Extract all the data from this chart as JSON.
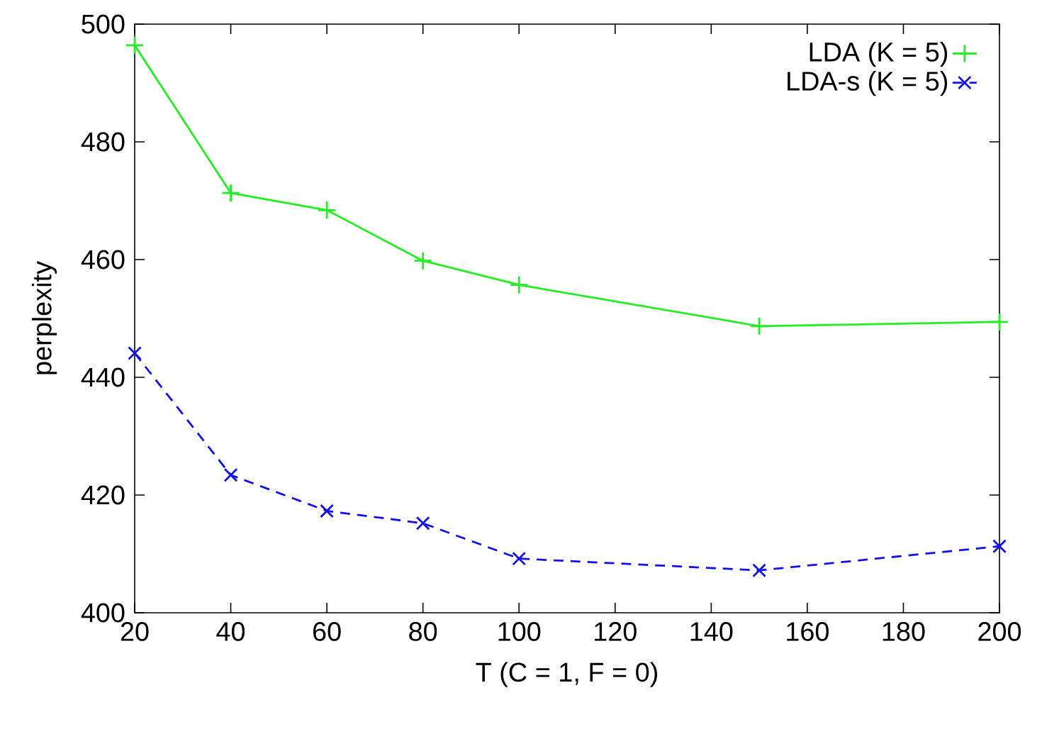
{
  "chart_data": {
    "type": "line",
    "xlabel": "T (C = 1, F = 0)",
    "ylabel": "perplexity",
    "x": [
      20,
      40,
      60,
      80,
      100,
      150,
      200
    ],
    "series": [
      {
        "name": "LDA (K = 5)",
        "color": "#22ee22",
        "marker": "plus",
        "line_style": "solid",
        "values": [
          496.4,
          471.3,
          468.4,
          459.8,
          455.7,
          448.7,
          449.4
        ]
      },
      {
        "name": "LDA-s (K = 5)",
        "color": "#1111ee",
        "marker": "cross",
        "line_style": "dashed",
        "values": [
          444.1,
          423.4,
          417.3,
          415.2,
          409.2,
          407.2,
          411.3
        ]
      }
    ],
    "xlim": [
      20,
      200
    ],
    "ylim": [
      400,
      500
    ],
    "xticks": [
      20,
      40,
      60,
      80,
      100,
      120,
      140,
      160,
      180,
      200
    ],
    "yticks": [
      400,
      420,
      440,
      460,
      480,
      500
    ],
    "grid": false,
    "legend": "top right"
  }
}
